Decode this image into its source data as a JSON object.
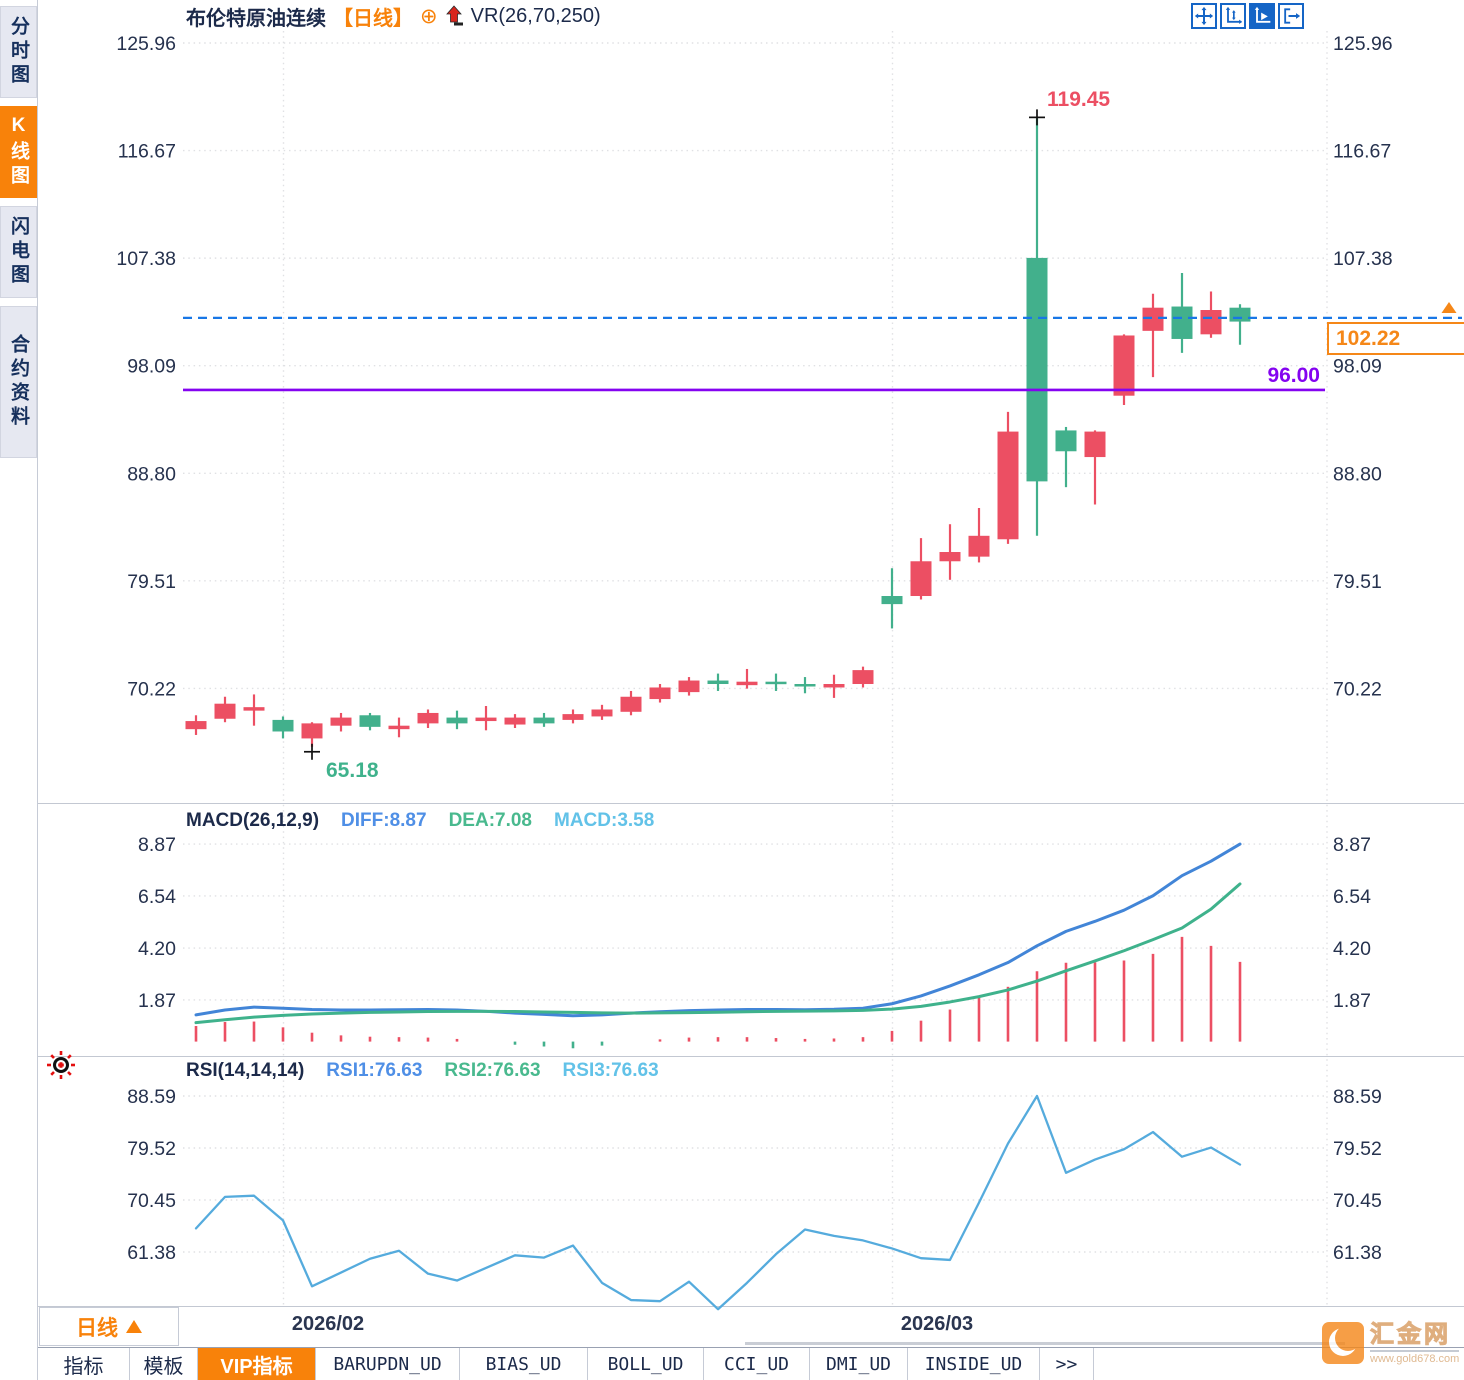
{
  "header": {
    "symbol": "布伦特原油连续",
    "period_tag": "【日线】",
    "indicator": "VR(26,70,250)"
  },
  "sidebar": {
    "items": [
      {
        "label": "分时图",
        "active": false
      },
      {
        "label": "K线图",
        "active": true
      },
      {
        "label": "闪电图",
        "active": false
      },
      {
        "label": "合约资料",
        "active": false
      }
    ]
  },
  "toolbar": {
    "icons": [
      "pan-crosshair-icon",
      "axis-scale-icon",
      "axis-play-icon",
      "exit-right-icon"
    ],
    "active_index": 2
  },
  "price_marks": {
    "high_label": "119.45",
    "low_label": "65.18",
    "hline_label": "96.00",
    "last_price_label": "102.22"
  },
  "macd_header": {
    "title": "MACD(26,12,9)",
    "diff": "DIFF:8.87",
    "dea": "DEA:7.08",
    "macd": "MACD:3.58"
  },
  "rsi_header": {
    "title": "RSI(14,14,14)",
    "rsi1": "RSI1:76.63",
    "rsi2": "RSI2:76.63",
    "rsi3": "RSI3:76.63"
  },
  "bottom": {
    "period_label": "日线",
    "tabs": [
      {
        "label": "指标",
        "active": false,
        "mono": false
      },
      {
        "label": "模板",
        "active": false,
        "mono": false
      },
      {
        "label": "VIP指标",
        "active": true,
        "mono": false
      },
      {
        "label": "BARUPDN_UD",
        "active": false,
        "mono": true
      },
      {
        "label": "BIAS_UD",
        "active": false,
        "mono": true
      },
      {
        "label": "BOLL_UD",
        "active": false,
        "mono": true
      },
      {
        "label": "CCI_UD",
        "active": false,
        "mono": true
      },
      {
        "label": "DMI_UD",
        "active": false,
        "mono": true
      },
      {
        "label": "INSIDE_UD",
        "active": false,
        "mono": true
      },
      {
        "label": ">>",
        "active": false,
        "mono": true
      }
    ]
  },
  "watermark": {
    "name": "汇金网",
    "url": "www.gold678.com"
  },
  "colors": {
    "up_red": "#ec4f63",
    "down_green": "#42b08c",
    "accent_orange": "#f8820a",
    "dash_blue": "#1877e6",
    "hline_purple": "#8403f0",
    "diff_blue": "#4285d7",
    "dea_green": "#3fb28c",
    "rsi_blue": "#55abdd"
  },
  "chart_data": [
    {
      "type": "candlestick",
      "title": "布伦特原油连续【日线】",
      "y_tick_labels": [
        "125.96",
        "116.67",
        "107.38",
        "98.09",
        "88.80",
        "79.51",
        "70.22"
      ],
      "y_tick_values": [
        125.96,
        116.67,
        107.38,
        98.09,
        88.8,
        79.51,
        70.22
      ],
      "x_ticks": [
        "2026/02",
        "2026/03"
      ],
      "x_tick_candle_index": [
        3,
        24
      ],
      "columns": [
        "high",
        "body_top",
        "body_bottom",
        "low",
        "color"
      ],
      "candles": [
        [
          67.9,
          67.4,
          66.7,
          66.2,
          "r"
        ],
        [
          69.5,
          68.9,
          67.6,
          67.3,
          "r"
        ],
        [
          69.7,
          68.6,
          68.3,
          67.0,
          "r"
        ],
        [
          67.8,
          67.5,
          66.5,
          65.9,
          "g"
        ],
        [
          67.3,
          67.2,
          65.9,
          65.18,
          "r"
        ],
        [
          68.1,
          67.7,
          67.0,
          66.5,
          "r"
        ],
        [
          68.1,
          67.9,
          66.9,
          66.6,
          "g"
        ],
        [
          67.7,
          67.0,
          66.7,
          66.0,
          "r"
        ],
        [
          68.4,
          68.1,
          67.2,
          66.8,
          "r"
        ],
        [
          68.3,
          67.7,
          67.2,
          66.7,
          "g"
        ],
        [
          68.7,
          67.7,
          67.4,
          66.6,
          "r"
        ],
        [
          68.0,
          67.7,
          67.1,
          66.8,
          "r"
        ],
        [
          68.1,
          67.7,
          67.2,
          66.9,
          "g"
        ],
        [
          68.4,
          68.0,
          67.5,
          67.2,
          "r"
        ],
        [
          68.8,
          68.4,
          67.8,
          67.5,
          "r"
        ],
        [
          70.0,
          69.5,
          68.2,
          67.9,
          "r"
        ],
        [
          70.6,
          70.3,
          69.3,
          69.0,
          "r"
        ],
        [
          71.2,
          70.9,
          69.9,
          69.6,
          "r"
        ],
        [
          71.5,
          70.9,
          70.6,
          70.0,
          "g"
        ],
        [
          71.9,
          70.8,
          70.5,
          70.2,
          "r"
        ],
        [
          71.5,
          70.8,
          70.6,
          70.0,
          "g"
        ],
        [
          71.2,
          70.6,
          70.4,
          69.8,
          "g"
        ],
        [
          71.4,
          70.6,
          70.3,
          69.4,
          "r"
        ],
        [
          72.1,
          71.8,
          70.6,
          70.3,
          "r"
        ],
        [
          80.6,
          78.2,
          77.5,
          75.4,
          "g"
        ],
        [
          83.2,
          81.2,
          78.2,
          77.9,
          "r"
        ],
        [
          84.4,
          82.0,
          81.2,
          79.6,
          "r"
        ],
        [
          85.8,
          83.4,
          81.6,
          81.1,
          "r"
        ],
        [
          94.1,
          92.4,
          83.1,
          82.7,
          "r"
        ],
        [
          119.45,
          107.4,
          88.1,
          83.4,
          "g"
        ],
        [
          92.8,
          92.5,
          90.7,
          87.6,
          "g"
        ],
        [
          92.5,
          92.4,
          90.2,
          86.1,
          "r"
        ],
        [
          100.8,
          100.7,
          95.5,
          94.7,
          "r"
        ],
        [
          104.3,
          103.1,
          101.1,
          97.1,
          "r"
        ],
        [
          106.1,
          103.2,
          100.4,
          99.2,
          "g"
        ],
        [
          104.5,
          102.9,
          100.8,
          100.5,
          "r"
        ],
        [
          103.4,
          103.1,
          101.9,
          99.9,
          "g"
        ]
      ],
      "annotations": {
        "high": {
          "value": 119.45,
          "candle_index": 29
        },
        "low": {
          "value": 65.18,
          "candle_index": 4
        },
        "hline": 96.0,
        "last_price": 102.22
      }
    },
    {
      "type": "macd",
      "title": "MACD(26,12,9)",
      "y_tick_labels": [
        "8.87",
        "6.54",
        "4.20",
        "1.87"
      ],
      "y_tick_values": [
        8.87,
        6.54,
        4.2,
        1.87
      ],
      "series": [
        {
          "name": "DIFF",
          "last": 8.87,
          "values": [
            1.2,
            1.42,
            1.55,
            1.5,
            1.44,
            1.42,
            1.42,
            1.43,
            1.44,
            1.42,
            1.36,
            1.28,
            1.22,
            1.16,
            1.2,
            1.28,
            1.34,
            1.39,
            1.42,
            1.44,
            1.44,
            1.43,
            1.45,
            1.5,
            1.7,
            2.05,
            2.5,
            3.0,
            3.55,
            4.3,
            4.95,
            5.4,
            5.9,
            6.55,
            7.45,
            8.1,
            8.87
          ]
        },
        {
          "name": "DEA",
          "last": 7.08,
          "values": [
            0.85,
            0.98,
            1.1,
            1.18,
            1.24,
            1.28,
            1.31,
            1.33,
            1.35,
            1.36,
            1.36,
            1.35,
            1.33,
            1.31,
            1.29,
            1.28,
            1.29,
            1.3,
            1.32,
            1.34,
            1.36,
            1.37,
            1.38,
            1.4,
            1.46,
            1.58,
            1.78,
            2.02,
            2.32,
            2.72,
            3.18,
            3.62,
            4.08,
            4.58,
            5.1,
            5.95,
            7.08
          ]
        },
        {
          "name": "MACD_HIST",
          "last": 3.58,
          "values": [
            0.7,
            0.88,
            0.9,
            0.64,
            0.4,
            0.28,
            0.22,
            0.2,
            0.18,
            0.12,
            0.0,
            -0.14,
            -0.22,
            -0.3,
            -0.18,
            0.0,
            0.1,
            0.18,
            0.2,
            0.2,
            0.16,
            0.12,
            0.14,
            0.2,
            0.48,
            0.94,
            1.44,
            1.96,
            2.46,
            3.16,
            3.54,
            3.56,
            3.64,
            3.94,
            4.7,
            4.3,
            3.58
          ]
        }
      ]
    },
    {
      "type": "line",
      "title": "RSI(14,14,14)",
      "y_tick_labels": [
        "88.59",
        "79.52",
        "70.45",
        "61.38"
      ],
      "y_tick_values": [
        88.59,
        79.52,
        70.45,
        61.38
      ],
      "series": [
        {
          "name": "RSI1",
          "last": 76.63,
          "values": [
            65.5,
            71.0,
            71.2,
            66.9,
            55.4,
            57.8,
            60.2,
            61.6,
            57.6,
            56.4,
            58.6,
            60.8,
            60.4,
            62.5,
            56.0,
            53.0,
            52.8,
            56.2,
            51.4,
            56.0,
            61.0,
            65.3,
            64.2,
            63.4,
            62.0,
            60.3,
            60.0,
            70.0,
            80.3,
            88.59,
            75.2,
            77.5,
            79.3,
            82.3,
            78.0,
            79.6,
            76.63
          ]
        }
      ]
    }
  ]
}
